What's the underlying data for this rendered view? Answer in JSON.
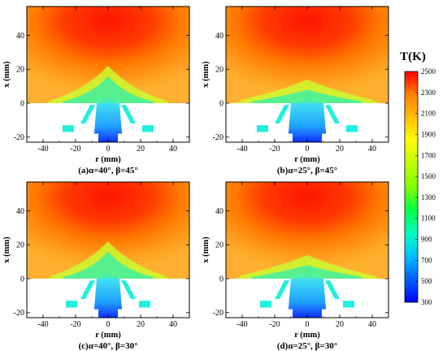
{
  "panels": [
    {
      "caption": "(a)α=40°, β=45°",
      "xlabel": "r (mm)",
      "ylabel": "x (mm)",
      "xticks": [
        "-40",
        "-20",
        "0",
        "20",
        "40"
      ],
      "yticks": [
        "40",
        "20",
        "0",
        "-20"
      ],
      "alpha": 40,
      "beta": 45
    },
    {
      "caption": "(b)α=25°, β=45°",
      "xlabel": "r (mm)",
      "ylabel": "x (mm)",
      "xticks": [
        "-40",
        "-20",
        "0",
        "20",
        "40"
      ],
      "yticks": [
        "40",
        "20",
        "0",
        "-20"
      ],
      "alpha": 25,
      "beta": 45
    },
    {
      "caption": "(c)α=40°, β=30°",
      "xlabel": "r (mm)",
      "ylabel": "x (mm)",
      "xticks": [
        "-40",
        "-20",
        "0",
        "20",
        "40"
      ],
      "yticks": [
        "40",
        "20",
        "0",
        "-20"
      ],
      "alpha": 40,
      "beta": 30
    },
    {
      "caption": "(d)α=25°, β=30°",
      "xlabel": "r (mm)",
      "ylabel": "x (mm)",
      "xticks": [
        "-40",
        "-20",
        "0",
        "20",
        "40"
      ],
      "yticks": [
        "40",
        "20",
        "0",
        "-20"
      ],
      "alpha": 25,
      "beta": 30
    }
  ],
  "colorbar": {
    "title": "T(K)",
    "labels": [
      "2500",
      "2300",
      "2100",
      "1900",
      "1700",
      "1500",
      "1300",
      "1100",
      "900",
      "700",
      "500",
      "300"
    ],
    "colors": [
      "#ff0000",
      "#ff4000",
      "#ff8000",
      "#ffbf00",
      "#ffff00",
      "#bfff00",
      "#80ff00",
      "#00ff40",
      "#00ffbf",
      "#00bfff",
      "#0060ff",
      "#0000ff"
    ]
  }
}
